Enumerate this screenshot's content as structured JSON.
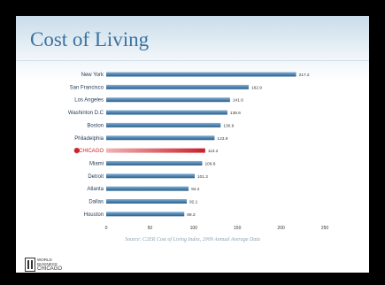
{
  "slide": {
    "title": "Cost of Living",
    "source": "Source: C2ER Cost of Living Index, 2009 Annual Average Data",
    "logo": [
      "WORLD",
      "BUSINESS",
      "CHICAGO"
    ]
  },
  "colors": {
    "bar": "#4f86b4",
    "highlight_bar": "#d23a3a",
    "highlight_label": "#c8202a",
    "title": "#3a72a0"
  },
  "chart_data": {
    "type": "bar",
    "orientation": "horizontal",
    "categories": [
      "New York",
      "San Francisco",
      "Los Angeles",
      "Washinton D.C",
      "Boston",
      "Philadelphia",
      "CHICAGO",
      "Miami",
      "Detroit",
      "Atlanta",
      "Dallas",
      "Houston"
    ],
    "values": [
      217.2,
      162.9,
      141.6,
      138.6,
      130.9,
      123.9,
      113.2,
      109.8,
      101.2,
      94.2,
      92.1,
      89.3
    ],
    "value_labels": [
      "217.2",
      "162.9",
      "141.6",
      "138.6",
      "130.9",
      "123.9",
      "113.2",
      "109.8",
      "101.2",
      "94.2",
      "92.1",
      "89.3"
    ],
    "highlight_category": "CHICAGO",
    "highlight_marker": "star-icon",
    "xlim": [
      0,
      250
    ],
    "xticks": [
      "0",
      "50",
      "100",
      "150",
      "200",
      "250"
    ],
    "grid": false,
    "legend": "none"
  }
}
